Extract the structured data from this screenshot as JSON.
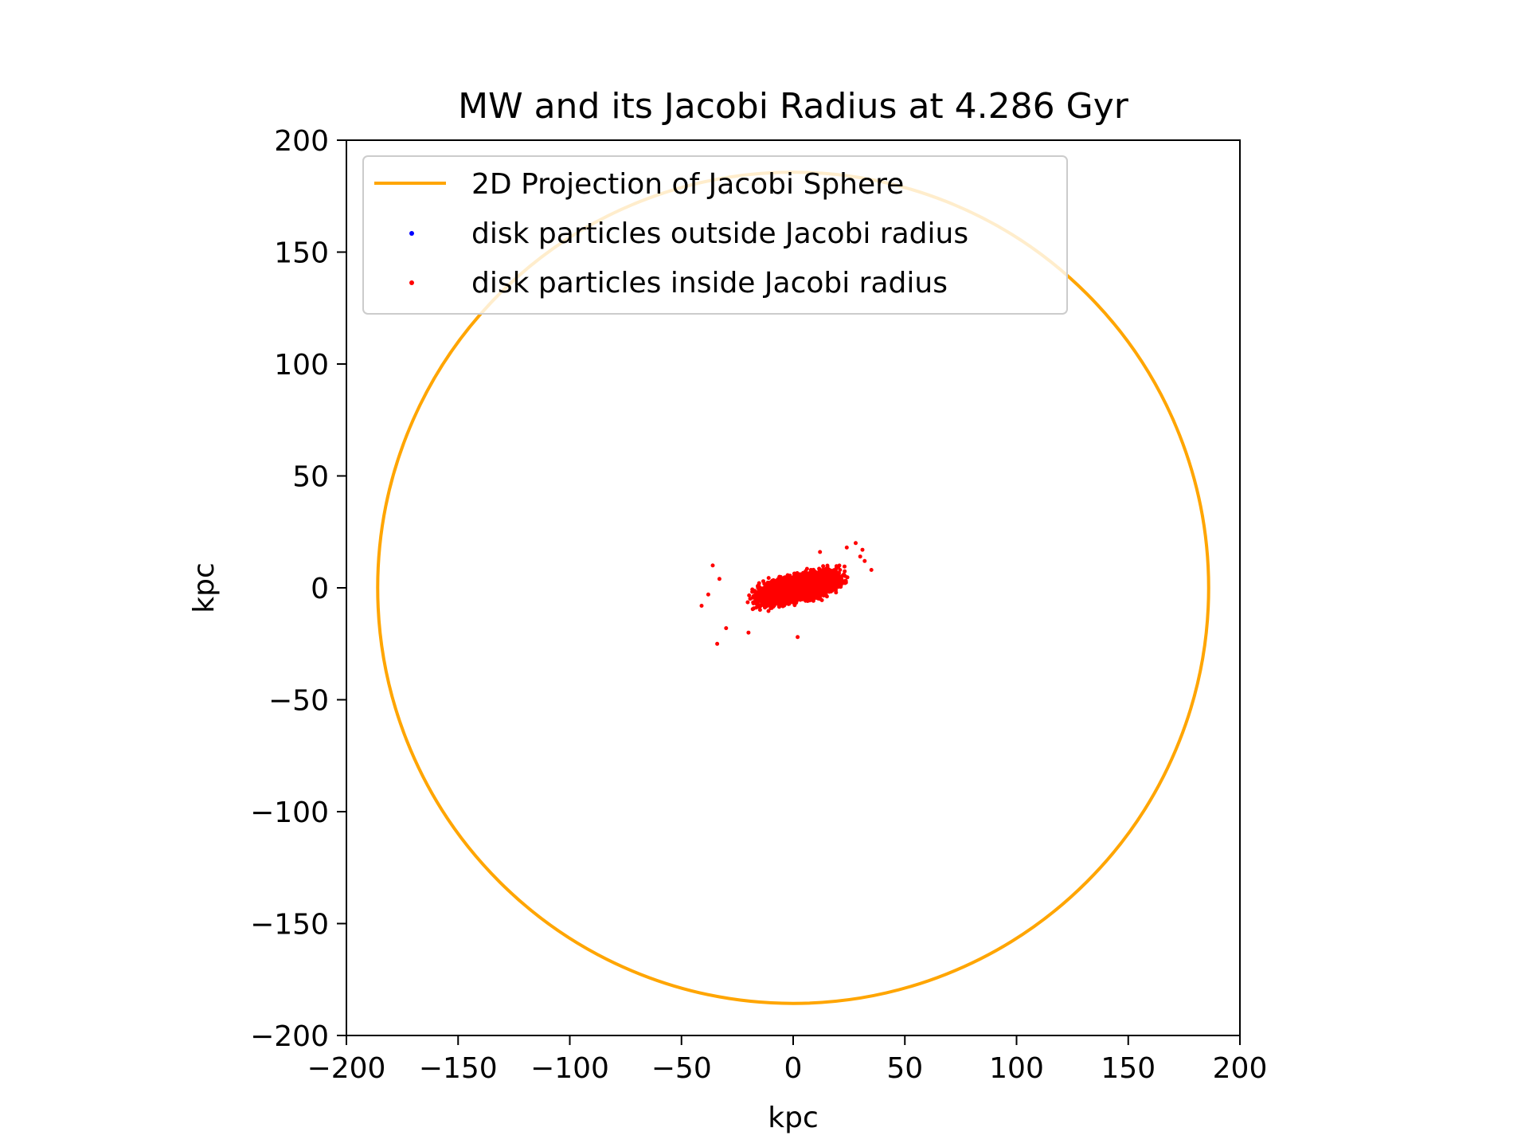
{
  "chart_data": {
    "type": "scatter",
    "title": "MW and its Jacobi Radius at 4.286 Gyr",
    "xlabel": "kpc",
    "ylabel": "kpc",
    "xlim": [
      -200,
      200
    ],
    "ylim": [
      -200,
      200
    ],
    "xticks": [
      -200,
      -150,
      -100,
      -50,
      0,
      50,
      100,
      150,
      200
    ],
    "yticks": [
      -200,
      -150,
      -100,
      -50,
      0,
      50,
      100,
      150,
      200
    ],
    "xtick_labels": [
      "−200",
      "−150",
      "−100",
      "−50",
      "0",
      "50",
      "100",
      "150",
      "200"
    ],
    "ytick_labels": [
      "−200",
      "−150",
      "−100",
      "−50",
      "0",
      "50",
      "100",
      "150",
      "200"
    ],
    "grid": false,
    "legend_position": "upper-left",
    "series": [
      {
        "name": "2D Projection of Jacobi Sphere",
        "kind": "circle",
        "center": [
          0,
          0
        ],
        "radius": 186,
        "color": "#ffa500"
      },
      {
        "name": "disk particles outside Jacobi radius",
        "kind": "scatter",
        "color": "#0000ff",
        "points": []
      },
      {
        "name": "disk particles inside Jacobi radius",
        "kind": "scatter",
        "color": "#ff0000",
        "cloud": {
          "center": [
            2,
            0
          ],
          "x_extent": [
            -28,
            30
          ],
          "y_extent": [
            -20,
            14
          ],
          "tilt_slope": 0.22,
          "count": 6000
        },
        "outliers": [
          [
            -36,
            10
          ],
          [
            -41,
            -8
          ],
          [
            -34,
            -25
          ],
          [
            -20,
            -20
          ],
          [
            2,
            -22
          ],
          [
            28,
            20
          ],
          [
            31,
            17
          ],
          [
            35,
            8
          ],
          [
            30,
            14
          ],
          [
            -38,
            -3
          ],
          [
            -33,
            4
          ],
          [
            32,
            12
          ],
          [
            24,
            18
          ],
          [
            -30,
            -18
          ],
          [
            12,
            16
          ]
        ]
      }
    ]
  }
}
